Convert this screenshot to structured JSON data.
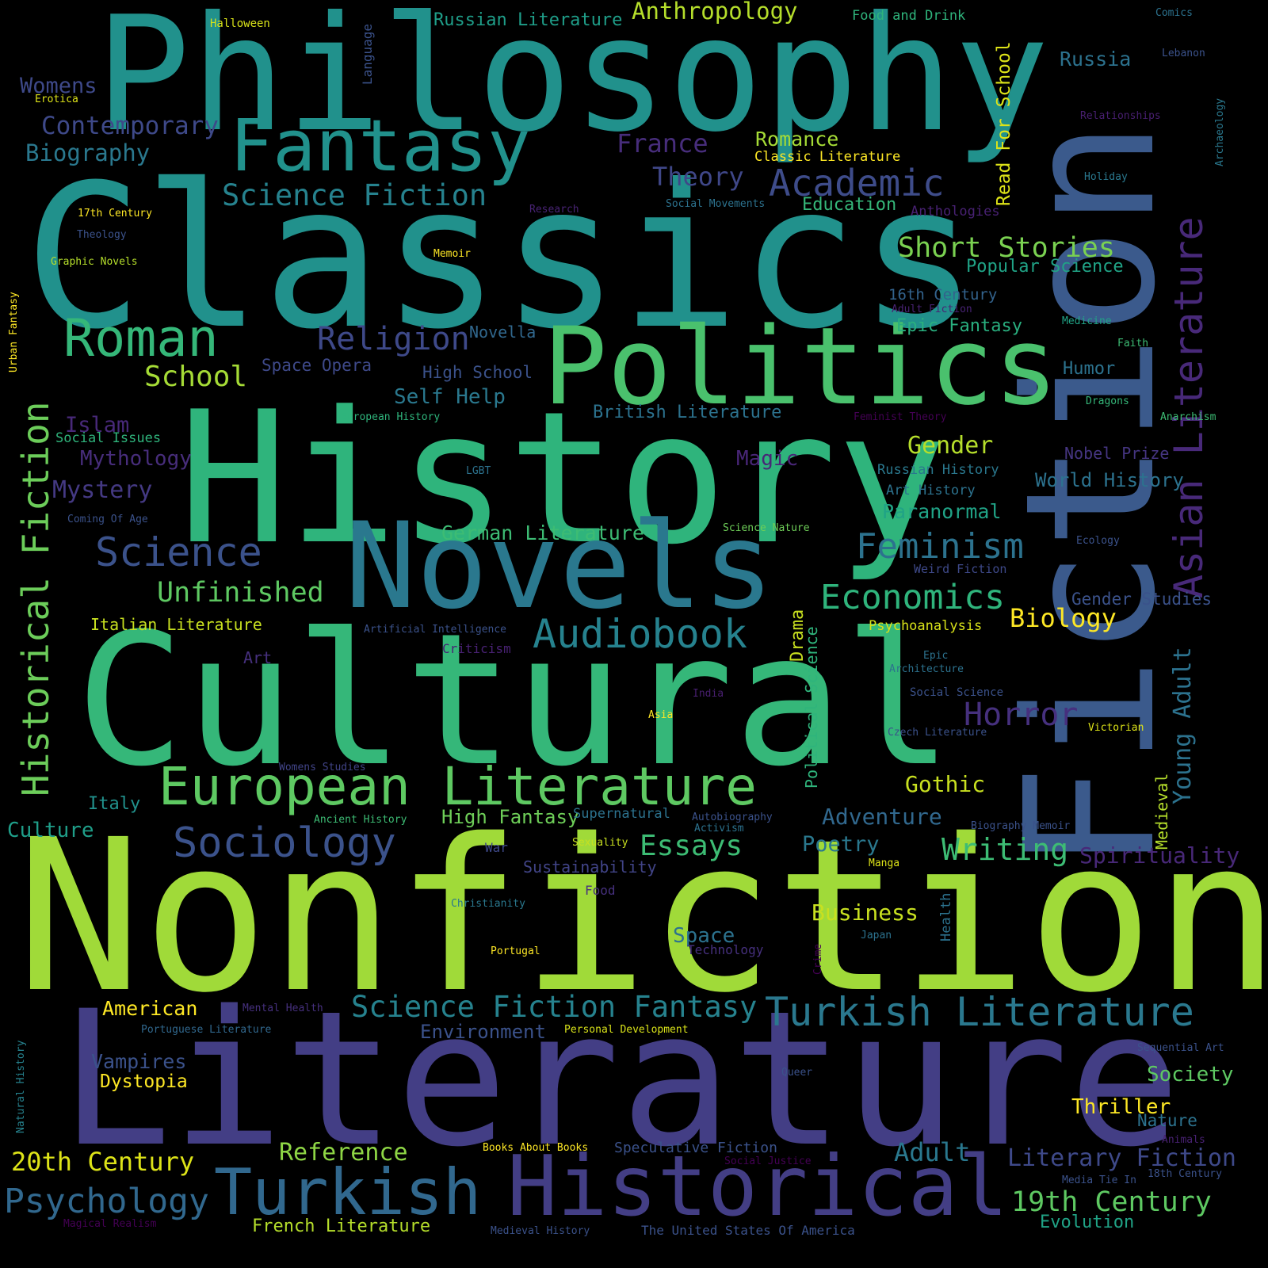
{
  "words": [
    {
      "text": "Philosophy",
      "color": "#21918c"
    },
    {
      "text": "Classics",
      "color": "#21918c"
    },
    {
      "text": "History",
      "color": "#2fb47c"
    },
    {
      "text": "Fiction",
      "color": "#3b5a8c"
    },
    {
      "text": "Nonfiction",
      "color": "#a0da39"
    },
    {
      "text": "Literature",
      "color": "#433e85"
    },
    {
      "text": "Cultural",
      "color": "#35b779"
    },
    {
      "text": "Novels",
      "color": "#2a788e"
    },
    {
      "text": "Politics",
      "color": "#4ac16d"
    },
    {
      "text": "Fantasy",
      "color": "#21918c"
    },
    {
      "text": "Historical",
      "color": "#433e85"
    },
    {
      "text": "Turkish",
      "color": "#31688e"
    },
    {
      "text": "European Literature",
      "color": "#5ec962"
    },
    {
      "text": "Roman",
      "color": "#35b779"
    },
    {
      "text": "Science",
      "color": "#3b528b"
    },
    {
      "text": "Sociology",
      "color": "#3b528b"
    },
    {
      "text": "Historical Fiction",
      "color": "#6ccd5a"
    },
    {
      "text": "Asian Literature",
      "color": "#482979"
    },
    {
      "text": "Turkish Literature",
      "color": "#2a788e"
    },
    {
      "text": "Audiobook",
      "color": "#26828e"
    },
    {
      "text": "Science Fiction",
      "color": "#26828e"
    },
    {
      "text": "Academic",
      "color": "#3e4c8a"
    },
    {
      "text": "Science Fiction Fantasy",
      "color": "#26828e"
    },
    {
      "text": "Feminism",
      "color": "#2c728e"
    },
    {
      "text": "Economics",
      "color": "#2fb47c"
    },
    {
      "text": "Psychology",
      "color": "#31688e"
    },
    {
      "text": "Religion",
      "color": "#3e4989"
    },
    {
      "text": "Unfinished",
      "color": "#5ec962"
    },
    {
      "text": "Short Stories",
      "color": "#7ad151"
    },
    {
      "text": "Horror",
      "color": "#46307e"
    },
    {
      "text": "Writing",
      "color": "#3dbc74"
    },
    {
      "text": "Literary Fiction",
      "color": "#3e4989"
    },
    {
      "text": "19th Century",
      "color": "#5ec962"
    },
    {
      "text": "20th Century",
      "color": "#dde318"
    },
    {
      "text": "School",
      "color": "#a5db36"
    },
    {
      "text": "Essays",
      "color": "#3dbc74"
    },
    {
      "text": "Reference",
      "color": "#8ed645"
    },
    {
      "text": "Adult",
      "color": "#2a788e"
    },
    {
      "text": "Young Adult",
      "color": "#2c728e"
    },
    {
      "text": "Contemporary",
      "color": "#3e4989"
    },
    {
      "text": "Gender",
      "color": "#b5de2b"
    },
    {
      "text": "Anthropology",
      "color": "#b5de2b"
    },
    {
      "text": "Theory",
      "color": "#3f4788"
    },
    {
      "text": "Russian Literature",
      "color": "#1f9e89"
    },
    {
      "text": "Biology",
      "color": "#fde725"
    },
    {
      "text": "Spirituality",
      "color": "#482878"
    },
    {
      "text": "Business",
      "color": "#c8e020"
    },
    {
      "text": "Biography",
      "color": "#2a788e"
    },
    {
      "text": "Romance",
      "color": "#a5db36"
    },
    {
      "text": "France",
      "color": "#472d7b"
    },
    {
      "text": "Mystery",
      "color": "#443983"
    },
    {
      "text": "Womens",
      "color": "#3e4989"
    },
    {
      "text": "Russia",
      "color": "#2c728e"
    },
    {
      "text": "Gothic",
      "color": "#c8e020"
    },
    {
      "text": "Adventure",
      "color": "#31688e"
    },
    {
      "text": "Sustainability",
      "color": "#414487"
    },
    {
      "text": "Self Help",
      "color": "#2a788e"
    },
    {
      "text": "American",
      "color": "#fde725"
    },
    {
      "text": "Paranormal",
      "color": "#20a386"
    },
    {
      "text": "Poetry",
      "color": "#2a788e"
    },
    {
      "text": "German Literature",
      "color": "#3dbc74"
    },
    {
      "text": "High Fantasy",
      "color": "#6ece58"
    },
    {
      "text": "Society",
      "color": "#5ec962"
    },
    {
      "text": "World History",
      "color": "#2c728e"
    },
    {
      "text": "Read For School",
      "color": "#dde318"
    },
    {
      "text": "Islam",
      "color": "#482979"
    },
    {
      "text": "Mythology",
      "color": "#472d7b"
    },
    {
      "text": "Magic",
      "color": "#482677"
    },
    {
      "text": "Space",
      "color": "#2c728e"
    },
    {
      "text": "Thriller",
      "color": "#fde725"
    },
    {
      "text": "Dystopia",
      "color": "#fde725"
    },
    {
      "text": "Vampires",
      "color": "#3b528b"
    },
    {
      "text": "Environment",
      "color": "#3b528b"
    },
    {
      "text": "Culture",
      "color": "#1f9e89"
    },
    {
      "text": "Italy",
      "color": "#21918c"
    },
    {
      "text": "Humor",
      "color": "#2c728e"
    },
    {
      "text": "Drama",
      "color": "#c8e020"
    },
    {
      "text": "Political Science",
      "color": "#2fb47c"
    },
    {
      "text": "Education",
      "color": "#35b779"
    },
    {
      "text": "Popular Science",
      "color": "#20a386"
    },
    {
      "text": "Epic Fantasy",
      "color": "#29af7f"
    },
    {
      "text": "16th Century",
      "color": "#33638d"
    },
    {
      "text": "British Literature",
      "color": "#2c728e"
    },
    {
      "text": "Evolution",
      "color": "#20a386"
    },
    {
      "text": "French Literature",
      "color": "#b5de2b"
    },
    {
      "text": "Nature",
      "color": "#2c728e"
    },
    {
      "text": "Gender Studies",
      "color": "#3b528b"
    },
    {
      "text": "Space Opera",
      "color": "#3e4989"
    },
    {
      "text": "High School",
      "color": "#3b528b"
    },
    {
      "text": "Italian Literature",
      "color": "#c8e020"
    },
    {
      "text": "Art History",
      "color": "#2c728e"
    },
    {
      "text": "Russian History",
      "color": "#2a788e"
    },
    {
      "text": "Nobel Prize",
      "color": "#453581"
    },
    {
      "text": "Medieval",
      "color": "#b5de2b"
    },
    {
      "text": "Speculative Fiction",
      "color": "#3b528b"
    },
    {
      "text": "Psychoanalysis",
      "color": "#d8e219"
    },
    {
      "text": "Classic Literature",
      "color": "#fde725"
    },
    {
      "text": "Anthologies",
      "color": "#482173"
    },
    {
      "text": "Novella",
      "color": "#31688e"
    },
    {
      "text": "Social Issues",
      "color": "#2fb47c"
    },
    {
      "text": "Language",
      "color": "#3b528b"
    },
    {
      "text": "Health",
      "color": "#2c728e"
    },
    {
      "text": "Food and Drink",
      "color": "#2fb47c"
    },
    {
      "text": "Halloween",
      "color": "#d8e219"
    },
    {
      "text": "Comics",
      "color": "#2c728e"
    },
    {
      "text": "Lebanon",
      "color": "#3b528b"
    },
    {
      "text": "Relationships",
      "color": "#481f70"
    },
    {
      "text": "Archaeology",
      "color": "#2a788e"
    },
    {
      "text": "Holiday",
      "color": "#2a788e"
    },
    {
      "text": "Social Movements",
      "color": "#2c728e"
    },
    {
      "text": "Research",
      "color": "#482374"
    },
    {
      "text": "17th Century",
      "color": "#fde725"
    },
    {
      "text": "Theology",
      "color": "#3b528b"
    },
    {
      "text": "Graphic Novels",
      "color": "#b5de2b"
    },
    {
      "text": "Memoir",
      "color": "#fde725"
    },
    {
      "text": "Erotica",
      "color": "#dde318"
    },
    {
      "text": "Urban Fantasy",
      "color": "#fde725"
    },
    {
      "text": "Adult Fiction",
      "color": "#482374"
    },
    {
      "text": "Medicine",
      "color": "#20a386"
    },
    {
      "text": "Faith",
      "color": "#3dbc74"
    },
    {
      "text": "Dragons",
      "color": "#35b779"
    },
    {
      "text": "Feminist Theory",
      "color": "#440154"
    },
    {
      "text": "Anarchism",
      "color": "#3dbc74"
    },
    {
      "text": "European History",
      "color": "#2fb47c"
    },
    {
      "text": "LGBT",
      "color": "#2c728e"
    },
    {
      "text": "Coming Of Age",
      "color": "#3b528b"
    },
    {
      "text": "Science Nature",
      "color": "#6ece58"
    },
    {
      "text": "Ecology",
      "color": "#3b528b"
    },
    {
      "text": "Weird Fiction",
      "color": "#3e4989"
    },
    {
      "text": "Artificial Intelligence",
      "color": "#3b528b"
    },
    {
      "text": "Criticism",
      "color": "#482173"
    },
    {
      "text": "Art",
      "color": "#46307e"
    },
    {
      "text": "Epic",
      "color": "#2c728e"
    },
    {
      "text": "Architecture",
      "color": "#2c728e"
    },
    {
      "text": "Social Science",
      "color": "#3b528b"
    },
    {
      "text": "India",
      "color": "#481f70"
    },
    {
      "text": "Asia",
      "color": "#fde725"
    },
    {
      "text": "Czech Literature",
      "color": "#3b528b"
    },
    {
      "text": "Victorian",
      "color": "#dde318"
    },
    {
      "text": "Womens Studies",
      "color": "#414487"
    },
    {
      "text": "Ancient History",
      "color": "#3dbc74"
    },
    {
      "text": "Supernatural",
      "color": "#2c728e"
    },
    {
      "text": "Autobiography",
      "color": "#3b528b"
    },
    {
      "text": "Activism",
      "color": "#2c728e"
    },
    {
      "text": "Biography Memoir",
      "color": "#3b528b"
    },
    {
      "text": "Sexuality",
      "color": "#c8e020"
    },
    {
      "text": "War",
      "color": "#3e4989"
    },
    {
      "text": "Manga",
      "color": "#dde318"
    },
    {
      "text": "Christianity",
      "color": "#2a788e"
    },
    {
      "text": "Food",
      "color": "#46307e"
    },
    {
      "text": "Technology",
      "color": "#46307e"
    },
    {
      "text": "Japan",
      "color": "#2c728e"
    },
    {
      "text": "Portugal",
      "color": "#fde725"
    },
    {
      "text": "Crime",
      "color": "#440154"
    },
    {
      "text": "Mental Health",
      "color": "#46307e"
    },
    {
      "text": "Portuguese Literature",
      "color": "#31688e"
    },
    {
      "text": "Personal Development",
      "color": "#d8e219"
    },
    {
      "text": "Natural History",
      "color": "#26828e"
    },
    {
      "text": "Sequential Art",
      "color": "#3b528b"
    },
    {
      "text": "Queer",
      "color": "#3b528b"
    },
    {
      "text": "Animals",
      "color": "#482173"
    },
    {
      "text": "Books About Books",
      "color": "#fde725"
    },
    {
      "text": "Social Justice",
      "color": "#440154"
    },
    {
      "text": "Media Tie In",
      "color": "#3b528b"
    },
    {
      "text": "18th Century",
      "color": "#3b528b"
    },
    {
      "text": "Magical Realism",
      "color": "#440154"
    },
    {
      "text": "Medieval History",
      "color": "#3b528b"
    },
    {
      "text": "The United States Of America",
      "color": "#3b528b"
    }
  ]
}
